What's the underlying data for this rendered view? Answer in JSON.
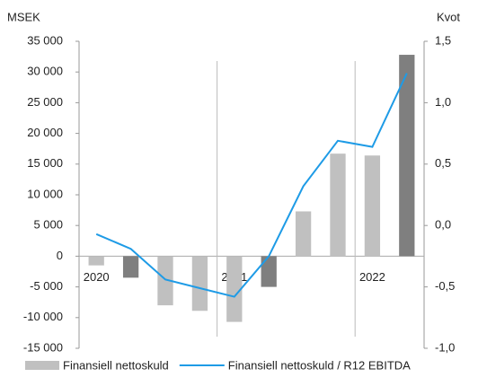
{
  "chart_data": {
    "type": "bar_line",
    "y_label": "MSEK",
    "y2_label": "Kvot",
    "categories": [
      "2020",
      null,
      null,
      null,
      "2021",
      null,
      null,
      null,
      "2022",
      null
    ],
    "series": [
      {
        "name": "Finansiell nettoskuld",
        "type": "bar",
        "color": "#c0c0c0",
        "colors": [
          "#c0c0c0",
          "#7f7f7f",
          "#c0c0c0",
          "#c0c0c0",
          "#c0c0c0",
          "#7f7f7f",
          "#c0c0c0",
          "#c0c0c0",
          "#c0c0c0",
          "#7f7f7f"
        ],
        "values": [
          -1500,
          -3500,
          -8000,
          -8900,
          -10700,
          -5000,
          7300,
          16700,
          16400,
          32800
        ]
      },
      {
        "name": "Finansiell nettoskuld / R12 EBITDA",
        "type": "line",
        "axis": "y2",
        "color": "#1e9be6",
        "values": [
          -0.07,
          -0.19,
          -0.44,
          -0.51,
          -0.58,
          -0.25,
          0.32,
          0.69,
          0.64,
          1.24
        ]
      }
    ],
    "ylim": [
      -15000,
      35000
    ],
    "yticks": [
      {
        "value": 35000,
        "label": "35 000"
      },
      {
        "value": 30000,
        "label": "30 000"
      },
      {
        "value": 25000,
        "label": "25 000"
      },
      {
        "value": 20000,
        "label": "20 000"
      },
      {
        "value": 15000,
        "label": "15 000"
      },
      {
        "value": 10000,
        "label": "10 000"
      },
      {
        "value": 5000,
        "label": "5 000"
      },
      0,
      {
        "value": -5000,
        "label": "-5 000"
      },
      {
        "value": -10000,
        "label": "-10 000"
      },
      {
        "value": -15000,
        "label": "-15 000"
      }
    ],
    "y2lim": [
      -1.0,
      1.5
    ],
    "y2ticks": [
      {
        "value": 1.5,
        "label": "1,5"
      },
      {
        "value": 1.0,
        "label": "1,0"
      },
      {
        "value": 0.5,
        "label": "0,5"
      },
      {
        "value": 0.0,
        "label": "0,0"
      },
      {
        "value": -0.5,
        "label": "-0,5"
      },
      {
        "value": -1.0,
        "label": "-1,0"
      }
    ],
    "legend": "bottom"
  }
}
